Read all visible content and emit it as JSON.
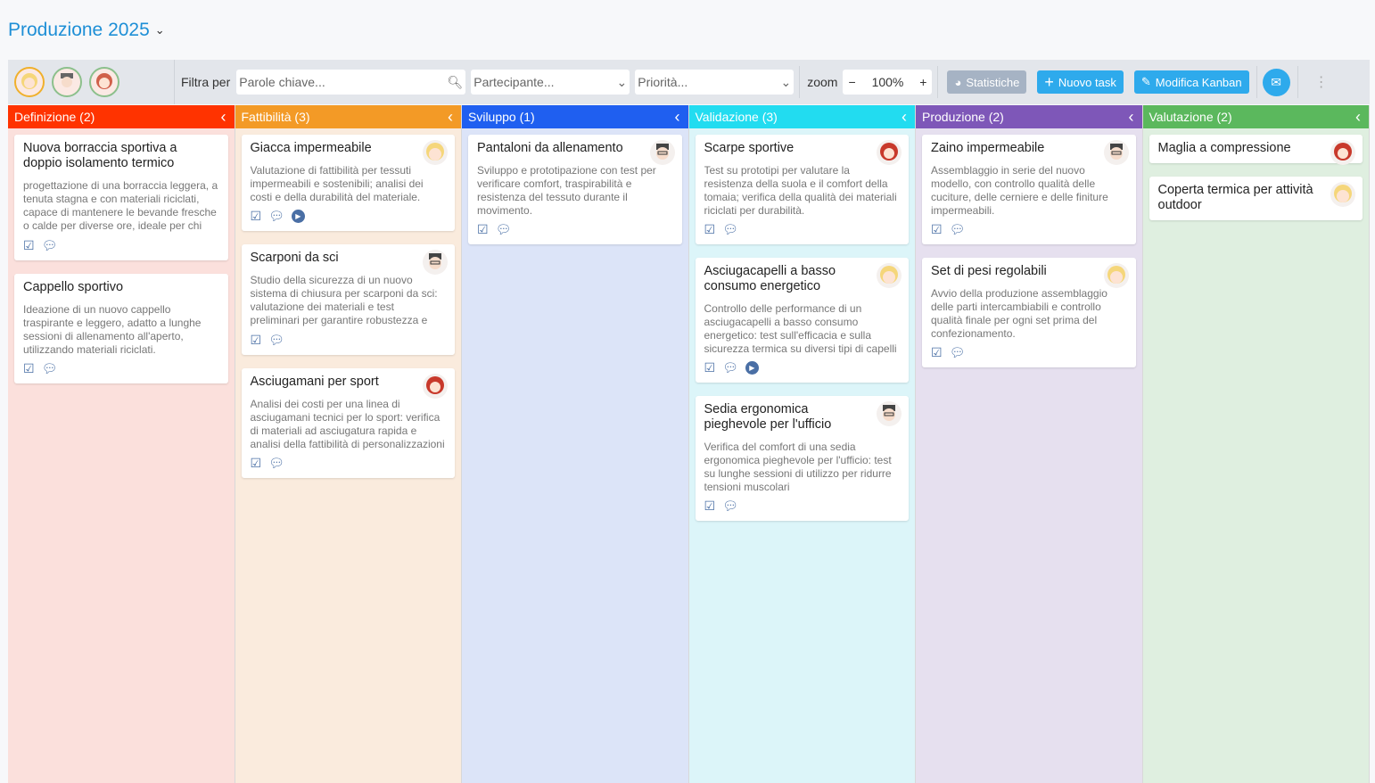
{
  "header": {
    "title": "Produzione 2025"
  },
  "toolbar": {
    "filter_label": "Filtra per",
    "keyword_placeholder": "Parole chiave...",
    "participant_placeholder": "Partecipante...",
    "priority_placeholder": "Priorità...",
    "zoom_label": "zoom",
    "zoom_value": "100%",
    "stats": "Statistiche",
    "new_task": "Nuovo task",
    "edit_kanban": "Modifica Kanban"
  },
  "columns": [
    {
      "title": "Definizione (2)",
      "color": "#ff3300",
      "bg": "#fbe0dc",
      "cards": [
        {
          "title": "Nuova borraccia sportiva a doppio isolamento termico",
          "desc": "progettazione di una borraccia leggera, a tenuta stagna e con materiali riciclati, capace di mantenere le bevande fresche o calde per diverse ore, ideale per chi pratica sport",
          "avatar": "",
          "play": false
        },
        {
          "title": "Cappello sportivo",
          "desc": "Ideazione di un nuovo cappello traspirante e leggero, adatto a lunghe sessioni di allenamento all'aperto, utilizzando materiali riciclati.",
          "avatar": "",
          "play": false
        }
      ]
    },
    {
      "title": "Fattibilità (3)",
      "color": "#f39a26",
      "bg": "#faebdd",
      "cards": [
        {
          "title": "Giacca impermeabile",
          "desc": "Valutazione di fattibilità per tessuti impermeabili e sostenibili; analisi dei costi e della durabilità del materiale.",
          "avatar": "blonde",
          "play": true
        },
        {
          "title": "Scarponi da sci",
          "desc": "Studio della sicurezza di un nuovo sistema di chiusura per scarponi da sci: valutazione dei materiali e test preliminari per garantire robustezza e facilità d'uso",
          "avatar": "man",
          "play": false
        },
        {
          "title": "Asciugamani per sport",
          "desc": "Analisi dei costi per una linea di asciugamani tecnici per lo sport: verifica di materiali ad asciugatura rapida e analisi della fattibilità di personalizzazioni",
          "avatar": "red",
          "play": false
        }
      ]
    },
    {
      "title": "Sviluppo (1)",
      "color": "#1f5ff0",
      "bg": "#dce4f8",
      "cards": [
        {
          "title": "Pantaloni da allenamento",
          "desc": "Sviluppo e prototipazione con test per verificare comfort, traspirabilità e resistenza del tessuto durante il movimento.",
          "avatar": "man",
          "play": false
        }
      ]
    },
    {
      "title": "Validazione (3)",
      "color": "#22dcf0",
      "bg": "#dcf5f9",
      "cards": [
        {
          "title": "Scarpe sportive",
          "desc": "Test su prototipi per valutare la resistenza della suola e il comfort della tomaia; verifica della qualità dei materiali riciclati per durabilità.",
          "avatar": "red",
          "play": false
        },
        {
          "title": "Asciugacapelli a basso consumo energetico",
          "desc": "Controllo delle performance di un asciugacapelli a basso consumo energetico: test sull'efficacia e sulla sicurezza termica su diversi tipi di capelli",
          "avatar": "blonde",
          "play": true
        },
        {
          "title": "Sedia ergonomica pieghevole per l'ufficio",
          "desc": "Verifica del comfort di una sedia ergonomica pieghevole per l'ufficio: test su lunghe sessioni di utilizzo per ridurre tensioni muscolari",
          "avatar": "man",
          "play": false
        }
      ]
    },
    {
      "title": "Produzione (2)",
      "color": "#7e57b8",
      "bg": "#e6e0ef",
      "cards": [
        {
          "title": "Zaino impermeabile",
          "desc": "Assemblaggio in serie del nuovo modello, con controllo qualità delle cuciture, delle cerniere e delle finiture impermeabili.",
          "avatar": "man",
          "play": false
        },
        {
          "title": "Set di pesi regolabili",
          "desc": "Avvio della produzione assemblaggio delle parti intercambiabili e controllo qualità finale per ogni set prima del confezionamento.",
          "avatar": "blonde",
          "play": false
        }
      ]
    },
    {
      "title": "Valutazione (2)",
      "color": "#5bb85d",
      "bg": "#dfefe0",
      "cards": [
        {
          "title": "Maglia a compressione",
          "desc": "",
          "avatar": "red",
          "play": false
        },
        {
          "title": "Coperta termica per attività outdoor",
          "desc": "",
          "avatar": "blonde",
          "play": false
        }
      ]
    }
  ]
}
